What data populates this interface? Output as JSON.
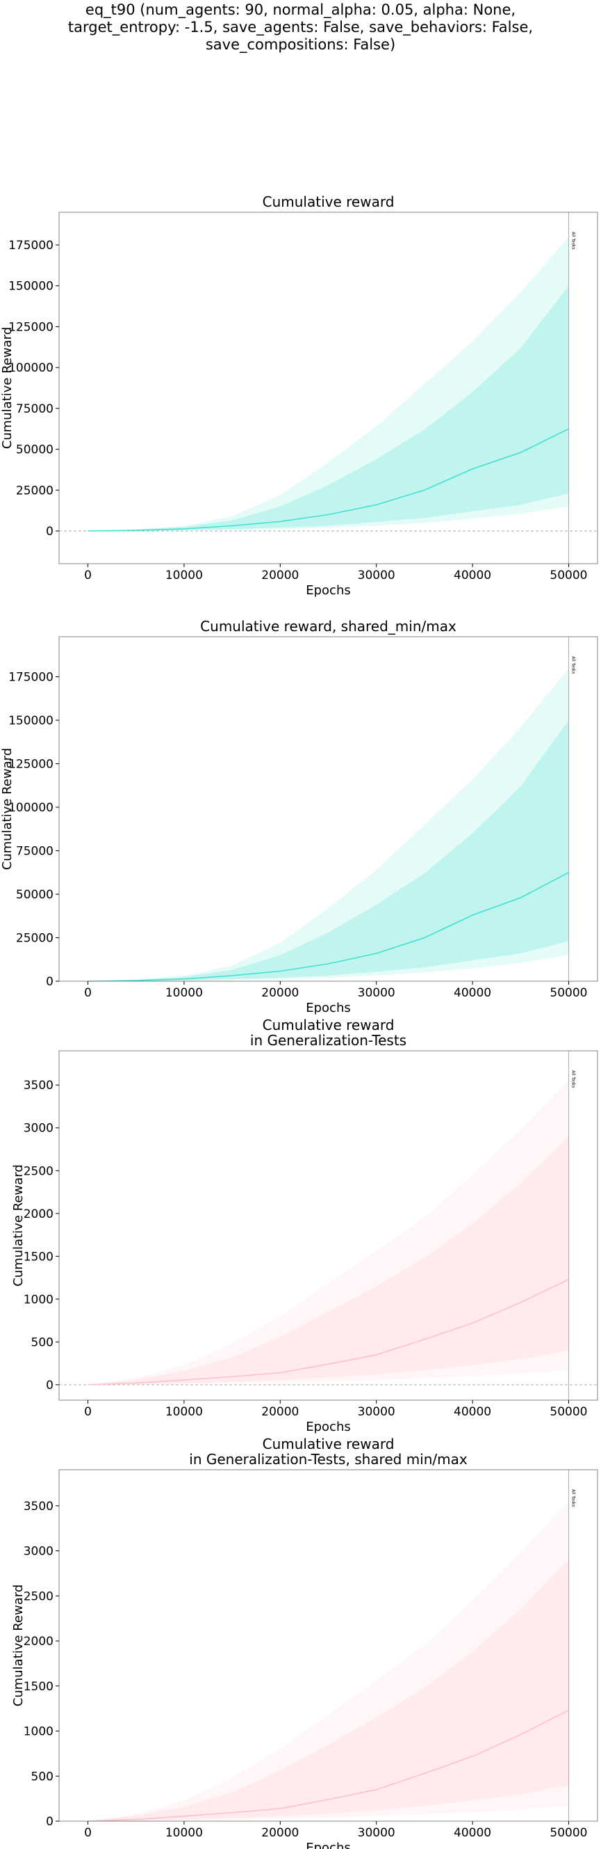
{
  "suptitle_lines": [
    "eq_t90 (num_agents: 90, normal_alpha: 0.05, alpha: None,",
    "target_entropy: -1.5, save_agents: False, save_behaviors: False,",
    "save_compositions: False)"
  ],
  "colors": {
    "reward": "#40e0d0",
    "generalization": "#ffc0cb",
    "axes_frame": "#808080",
    "zero_line": "#aaaaaa",
    "marker_line": "#999999"
  },
  "chart_data": [
    {
      "type": "area",
      "title": "Cumulative reward",
      "xlabel": "Epochs",
      "ylabel": "Cumulative Reward",
      "xlim": [
        -3000,
        53000
      ],
      "ylim": [
        -20000,
        195000
      ],
      "xticks": [
        0,
        10000,
        20000,
        30000,
        40000,
        50000
      ],
      "yticks": [
        0,
        25000,
        50000,
        75000,
        100000,
        125000,
        150000,
        175000
      ],
      "zero_line": true,
      "vertical_marker": {
        "x": 50000,
        "label": "All Tasks"
      },
      "color_key": "reward",
      "x": [
        0,
        5000,
        10000,
        15000,
        20000,
        25000,
        30000,
        35000,
        40000,
        45000,
        50000
      ],
      "series": [
        {
          "values": [
            0,
            400,
            1300,
            3200,
            5800,
            10000,
            16000,
            25000,
            38000,
            48000,
            62500
          ]
        },
        {
          "values": [
            0,
            800,
            2500,
            6500,
            15000,
            28000,
            44000,
            62000,
            85000,
            112000,
            150000
          ]
        },
        {
          "values": [
            0,
            1000,
            3200,
            9000,
            22000,
            42000,
            64000,
            90000,
            116000,
            146000,
            180000
          ]
        },
        {
          "values": [
            0,
            150,
            500,
            1200,
            2000,
            3200,
            5500,
            8000,
            12000,
            16000,
            23000
          ]
        },
        {
          "values": [
            0,
            80,
            300,
            700,
            1200,
            2000,
            3200,
            5000,
            7500,
            10500,
            15000
          ]
        }
      ]
    },
    {
      "type": "area",
      "title": "Cumulative reward, shared_min/max",
      "xlabel": "Epochs",
      "ylabel": "Cumulative Reward",
      "xlim": [
        -3000,
        53000
      ],
      "ylim": [
        0,
        198000
      ],
      "xticks": [
        0,
        10000,
        20000,
        30000,
        40000,
        50000
      ],
      "yticks": [
        0,
        25000,
        50000,
        75000,
        100000,
        125000,
        150000,
        175000
      ],
      "zero_line": false,
      "vertical_marker": {
        "x": 50000,
        "label": "All Tasks"
      },
      "color_key": "reward",
      "x": [
        0,
        5000,
        10000,
        15000,
        20000,
        25000,
        30000,
        35000,
        40000,
        45000,
        50000
      ],
      "series": [
        {
          "values": [
            0,
            400,
            1300,
            3200,
            5800,
            10000,
            16000,
            25000,
            38000,
            48000,
            62500
          ]
        },
        {
          "values": [
            0,
            800,
            2500,
            6500,
            15000,
            28000,
            44000,
            62000,
            85000,
            112000,
            150000
          ]
        },
        {
          "values": [
            0,
            1000,
            3200,
            9000,
            22000,
            42000,
            64000,
            90000,
            116000,
            146000,
            180000
          ]
        },
        {
          "values": [
            0,
            150,
            500,
            1200,
            2000,
            3200,
            5500,
            8000,
            12000,
            16000,
            23000
          ]
        },
        {
          "values": [
            0,
            80,
            300,
            700,
            1200,
            2000,
            3200,
            5000,
            7500,
            10500,
            15000
          ]
        }
      ]
    },
    {
      "type": "area",
      "title": "Cumulative reward\nin Generalization-Tests",
      "xlabel": "Epochs",
      "ylabel": "Cumulative Reward",
      "xlim": [
        -3000,
        53000
      ],
      "ylim": [
        -180,
        3900
      ],
      "xticks": [
        0,
        10000,
        20000,
        30000,
        40000,
        50000
      ],
      "yticks": [
        0,
        500,
        1000,
        1500,
        2000,
        2500,
        3000,
        3500
      ],
      "zero_line": true,
      "vertical_marker": {
        "x": 50000,
        "label": "All Tasks"
      },
      "color_key": "generalization",
      "x": [
        0,
        5000,
        10000,
        15000,
        20000,
        25000,
        30000,
        35000,
        40000,
        45000,
        50000
      ],
      "series": [
        {
          "values": [
            0,
            20,
            55,
            95,
            140,
            240,
            350,
            530,
            720,
            960,
            1230
          ]
        },
        {
          "values": [
            0,
            60,
            160,
            320,
            560,
            850,
            1150,
            1480,
            1880,
            2350,
            2900
          ]
        },
        {
          "values": [
            0,
            80,
            230,
            480,
            800,
            1180,
            1560,
            1950,
            2450,
            2980,
            3550
          ]
        },
        {
          "values": [
            0,
            8,
            20,
            35,
            55,
            85,
            120,
            170,
            230,
            300,
            400
          ]
        },
        {
          "values": [
            0,
            4,
            10,
            18,
            28,
            40,
            55,
            75,
            100,
            130,
            170
          ]
        }
      ]
    },
    {
      "type": "area",
      "title": "Cumulative reward\nin Generalization-Tests, shared min/max",
      "xlabel": "Epochs",
      "ylabel": "Cumulative Reward",
      "xlim": [
        -3000,
        53000
      ],
      "ylim": [
        0,
        3900
      ],
      "xticks": [
        0,
        10000,
        20000,
        30000,
        40000,
        50000
      ],
      "yticks": [
        0,
        500,
        1000,
        1500,
        2000,
        2500,
        3000,
        3500
      ],
      "zero_line": false,
      "vertical_marker": {
        "x": 50000,
        "label": "All Tasks"
      },
      "color_key": "generalization",
      "x": [
        0,
        5000,
        10000,
        15000,
        20000,
        25000,
        30000,
        35000,
        40000,
        45000,
        50000
      ],
      "series": [
        {
          "values": [
            0,
            20,
            55,
            95,
            140,
            240,
            350,
            530,
            720,
            960,
            1230
          ]
        },
        {
          "values": [
            0,
            60,
            160,
            320,
            560,
            850,
            1150,
            1480,
            1880,
            2350,
            2900
          ]
        },
        {
          "values": [
            0,
            80,
            230,
            480,
            800,
            1180,
            1560,
            1950,
            2450,
            2980,
            3550
          ]
        },
        {
          "values": [
            0,
            8,
            20,
            35,
            55,
            85,
            120,
            170,
            230,
            300,
            400
          ]
        },
        {
          "values": [
            0,
            4,
            10,
            18,
            28,
            40,
            55,
            75,
            100,
            130,
            170
          ]
        }
      ]
    }
  ]
}
